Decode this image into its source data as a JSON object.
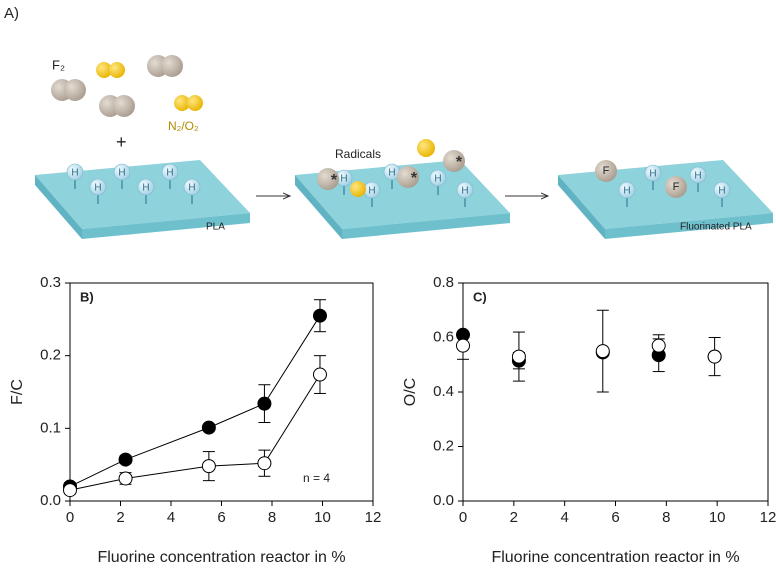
{
  "panel_label": "A)",
  "diagram": {
    "f2_label": "F₂",
    "n2o2_label": "N₂/O₂",
    "plus": "+",
    "radicals_label": "Radicals",
    "pla_label": "PLA",
    "fluorinated_label": "Fluorinated PLA",
    "h_atom": "H",
    "f_atom": "F",
    "radical_mark": "*"
  },
  "chart_data": [
    {
      "type": "errorbar",
      "panel_label": "B)",
      "annotation": "n = 4",
      "line": true,
      "x_label": "Fluorine concentration reactor in %",
      "y_label": "F/C",
      "x": [
        0,
        2.2,
        5.5,
        7.7,
        9.9
      ],
      "series": [
        {
          "color": "#000000",
          "values": [
            0.02,
            0.057,
            0.101,
            0.134,
            0.255
          ],
          "errors": [
            0.005,
            0.005,
            0.004,
            0.026,
            0.022
          ]
        },
        {
          "color": "#ffffff",
          "values": [
            0.015,
            0.031,
            0.048,
            0.052,
            0.174
          ],
          "errors": [
            0.005,
            0.008,
            0.02,
            0.018,
            0.026
          ]
        }
      ],
      "edgecolor": "#000000",
      "xlim": [
        0,
        12
      ],
      "xticks": [
        0,
        2,
        4,
        6,
        8,
        10,
        12
      ],
      "ylim": [
        0,
        0.3
      ],
      "yticks": [
        {
          "value": 0,
          "label": "0.0"
        },
        0.1,
        0.2,
        0.3
      ]
    },
    {
      "type": "errorbar",
      "panel_label": "C)",
      "line": false,
      "x_label": "Fluorine concentration reactor in %",
      "y_label": "O/C",
      "x": [
        0,
        2.2,
        5.5,
        7.7,
        9.9
      ],
      "series": [
        {
          "color": "#000000",
          "values": [
            0.61,
            0.515,
            0.545,
            0.535,
            0.53
          ],
          "errors": [
            0.01,
            0.03,
            0.01,
            0.06,
            0.01
          ]
        },
        {
          "color": "#ffffff",
          "values": [
            0.57,
            0.53,
            0.55,
            0.57,
            0.53
          ],
          "errors": [
            0.05,
            0.09,
            0.15,
            0.04,
            0.07
          ]
        }
      ],
      "edgecolor": "#000000",
      "xlim": [
        0,
        12
      ],
      "xticks": [
        0,
        2,
        4,
        6,
        8,
        10,
        12
      ],
      "ylim": [
        0,
        0.8
      ],
      "yticks": [
        {
          "value": 0,
          "label": "0.0"
        },
        0.2,
        0.4,
        0.6,
        0.8
      ]
    }
  ]
}
